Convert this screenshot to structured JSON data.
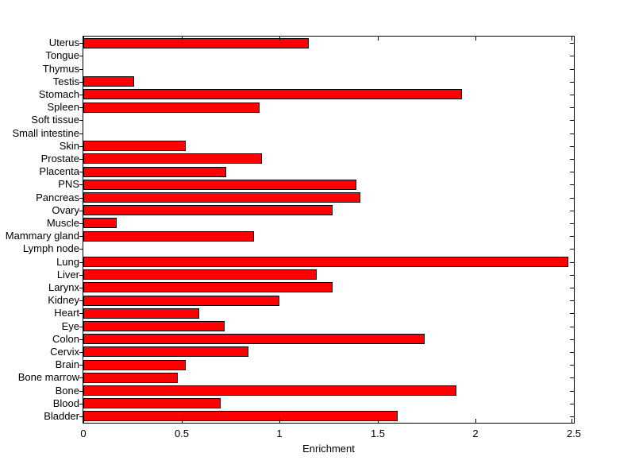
{
  "chart_data": {
    "type": "bar",
    "orientation": "horizontal",
    "title": "",
    "xlabel": "Enrichment",
    "ylabel": "",
    "xlim": [
      0,
      2.5
    ],
    "xticks": [
      0,
      0.5,
      1,
      1.5,
      2,
      2.5
    ],
    "xtick_labels": [
      "0",
      "0.5",
      "1",
      "1.5",
      "2",
      "2.5"
    ],
    "grid": false,
    "bar_color": "#ff0000",
    "bar_edge_color": "#000000",
    "categories_top_to_bottom": [
      "Uterus",
      "Tongue",
      "Thymus",
      "Testis",
      "Stomach",
      "Spleen",
      "Soft tissue",
      "Small intestine",
      "Skin",
      "Prostate",
      "Placenta",
      "PNS",
      "Pancreas",
      "Ovary",
      "Muscle",
      "Mammary gland",
      "Lymph node",
      "Lung",
      "Liver",
      "Larynx",
      "Kidney",
      "Heart",
      "Eye",
      "Colon",
      "Cervix",
      "Brain",
      "Bone marrow",
      "Bone",
      "Blood",
      "Bladder"
    ],
    "values": [
      1.15,
      0,
      0,
      0.26,
      1.93,
      0.9,
      0,
      0,
      0.52,
      0.91,
      0.73,
      1.39,
      1.41,
      1.27,
      0.17,
      0.87,
      0,
      2.47,
      1.19,
      1.27,
      1.0,
      0.59,
      0.72,
      1.74,
      0.84,
      0.52,
      0.48,
      1.9,
      0.7,
      1.6
    ]
  }
}
